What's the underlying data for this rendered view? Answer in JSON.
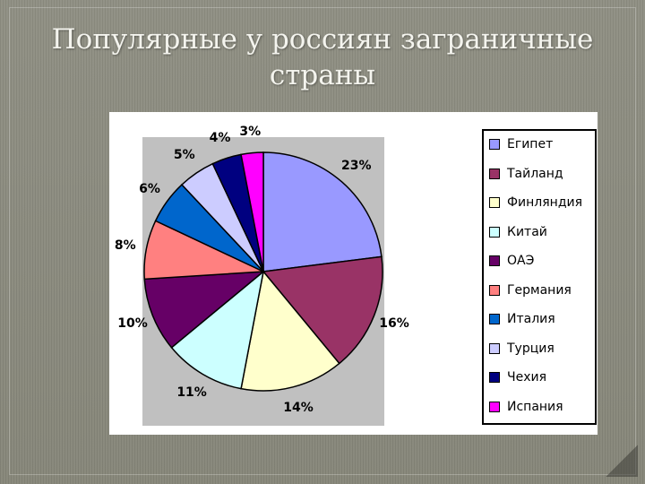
{
  "slide": {
    "title_line1": "Популярные у россиян заграничные",
    "title_line2": "страны"
  },
  "chart_data": {
    "type": "pie",
    "title": "Популярные у россиян заграничные страны",
    "categories": [
      "Египет",
      "Тайланд",
      "Финляндия",
      "Китай",
      "ОАЭ",
      "Германия",
      "Италия",
      "Турция",
      "Чехия",
      "Испания"
    ],
    "values": [
      23,
      16,
      14,
      11,
      10,
      8,
      6,
      5,
      4,
      3
    ],
    "labels": [
      "23%",
      "16%",
      "14%",
      "11%",
      "10%",
      "8%",
      "6%",
      "5%",
      "4%",
      "3%"
    ],
    "colors": [
      "#9999ff",
      "#993366",
      "#ffffcc",
      "#ccffff",
      "#660066",
      "#ff8080",
      "#0066cc",
      "#ccccff",
      "#000080",
      "#ff00ff"
    ],
    "legend": "right",
    "start_angle_deg": 0,
    "direction": "clockwise"
  }
}
